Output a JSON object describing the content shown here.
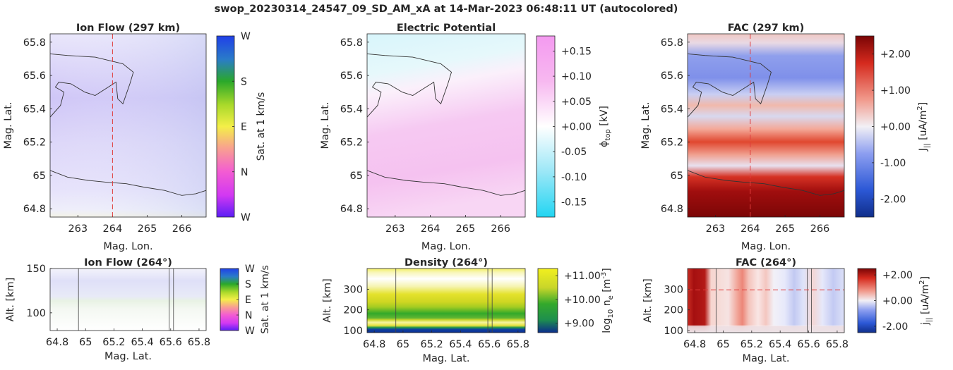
{
  "title": "swop_20230314_24547_09_SD_AM_xA at 14-Mar-2023 06:48:11 UT (autocolored)",
  "chart_data": [
    {
      "type": "heatmap",
      "title": "Ion Flow (297 km)",
      "xlabel": "Mag. Lon.",
      "ylabel": "Mag. Lat.",
      "xlim": [
        262.2,
        266.7
      ],
      "ylim": [
        64.75,
        65.85
      ],
      "xticks": [
        "263",
        "264",
        "265",
        "266"
      ],
      "yticks": [
        "64.8",
        "65",
        "65.2",
        "65.4",
        "65.6",
        "65.8"
      ],
      "colorbar": {
        "label": "Sat. at 1 km/s",
        "ticks": [
          "W",
          "N",
          "E",
          "S",
          "W"
        ]
      },
      "marker_longitude": 264
    },
    {
      "type": "heatmap",
      "title": "Electric Potential",
      "xlabel": "Mag. Lon.",
      "ylabel": "Mag. Lat.",
      "xlim": [
        262.2,
        266.7
      ],
      "ylim": [
        64.75,
        65.85
      ],
      "xticks": [
        "263",
        "264",
        "265",
        "266"
      ],
      "yticks": [
        "64.8",
        "65",
        "65.2",
        "65.4",
        "65.6",
        "65.8"
      ],
      "colorbar": {
        "label": "ϕtop [kV]",
        "label_main": "ϕ",
        "label_sub": "top",
        "label_tail": " [kV]",
        "range": [
          -0.18,
          0.18
        ],
        "ticks": [
          "-0.15",
          "-0.10",
          "-0.05",
          "+0.00",
          "+0.05",
          "+0.10",
          "+0.15"
        ]
      }
    },
    {
      "type": "heatmap",
      "title": "FAC (297 km)",
      "xlabel": "Mag. Lon.",
      "ylabel": "Mag. Lat.",
      "xlim": [
        262.2,
        266.7
      ],
      "ylim": [
        64.75,
        65.85
      ],
      "xticks": [
        "263",
        "264",
        "265",
        "266"
      ],
      "yticks": [
        "64.8",
        "65",
        "65.2",
        "65.4",
        "65.6",
        "65.8"
      ],
      "colorbar": {
        "label": "J|| [uA/m2]",
        "label_main": "J",
        "label_sub": "||",
        "label_tail": " [uA/m",
        "label_sup": "2",
        "label_end": "]",
        "range": [
          -2.5,
          2.5
        ],
        "ticks": [
          "-2.00",
          "-1.00",
          "+0.00",
          "+1.00",
          "+2.00"
        ]
      },
      "marker_longitude": 264
    },
    {
      "type": "heatmap",
      "title": "Ion Flow (264°)",
      "xlabel": "Mag. Lat.",
      "ylabel": "Alt. [km]",
      "xlim": [
        64.75,
        65.85
      ],
      "ylim": [
        80,
        150
      ],
      "xticks": [
        "64.8",
        "65",
        "65.2",
        "65.4",
        "65.6",
        "65.8"
      ],
      "yticks": [
        "100",
        "150"
      ],
      "colorbar": {
        "label": "Sat. at 1 km/s",
        "ticks": [
          "W",
          "N",
          "E",
          "S",
          "W"
        ]
      }
    },
    {
      "type": "heatmap",
      "title": "Density (264°)",
      "xlabel": "Mag. Lat.",
      "ylabel": "Alt. [km]",
      "xlim": [
        64.75,
        65.85
      ],
      "ylim": [
        90,
        400
      ],
      "xticks": [
        "64.8",
        "65",
        "65.2",
        "65.4",
        "65.6",
        "65.8"
      ],
      "yticks": [
        "100",
        "200",
        "300"
      ],
      "colorbar": {
        "label": "log10 ne [m-3]",
        "label_main": "log",
        "label_sub": "10",
        "label_mid": " n",
        "label_sub2": "e",
        "label_tail": " [m",
        "label_sup": "-3",
        "label_end": "]",
        "range": [
          8.6,
          11.3
        ],
        "ticks": [
          "+9.00",
          "+10.00",
          "+11.00"
        ]
      }
    },
    {
      "type": "heatmap",
      "title": "FAC (264°)",
      "xlabel": "Mag. Lat.",
      "ylabel": "Alt. [km]",
      "xlim": [
        64.75,
        65.85
      ],
      "ylim": [
        90,
        400
      ],
      "xticks": [
        "64.8",
        "65",
        "65.2",
        "65.4",
        "65.6",
        "65.8"
      ],
      "yticks": [
        "100",
        "200",
        "300"
      ],
      "colorbar": {
        "label": "j|| [uA/m2]",
        "label_main": "j",
        "label_sub": "||",
        "label_tail": " [uA/m",
        "label_sup": "2",
        "label_end": "]",
        "range": [
          -2.5,
          2.5
        ],
        "ticks": [
          "-2.00",
          "+0.00",
          "+2.00"
        ]
      },
      "marker_altitude": 297
    }
  ]
}
